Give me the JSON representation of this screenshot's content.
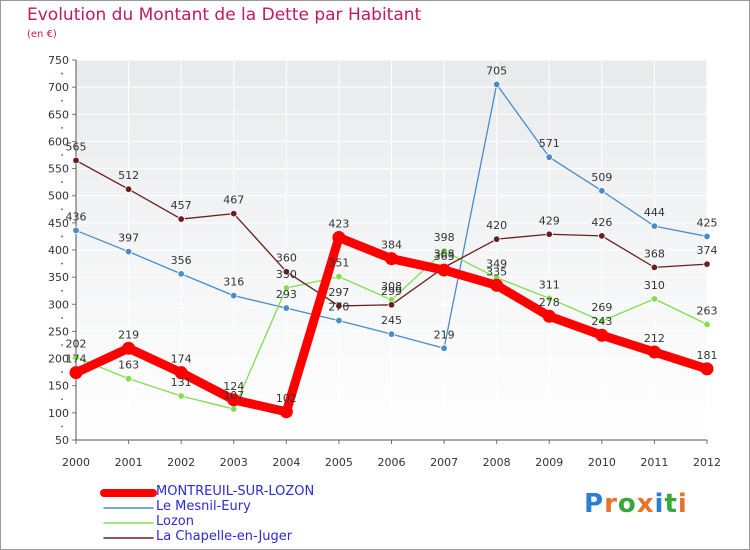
{
  "header": {
    "title": "Evolution du Montant de la Dette par Habitant",
    "subtitle": "(en €)"
  },
  "brand": {
    "logo_text": "Proxiti"
  },
  "chart_data": {
    "type": "line",
    "x": [
      "2000",
      "2001",
      "2002",
      "2003",
      "2004",
      "2005",
      "2006",
      "2007",
      "2008",
      "2009",
      "2010",
      "2011",
      "2012"
    ],
    "ylim": [
      50,
      750
    ],
    "yticks": [
      50,
      100,
      150,
      200,
      250,
      300,
      350,
      400,
      450,
      500,
      550,
      600,
      650,
      700,
      750
    ],
    "grid": true,
    "legend_position": "bottom-left",
    "series": [
      {
        "name": "MONTREUIL-SUR-LOZON",
        "color": "#ff0000",
        "values": [
          174,
          219,
          174,
          124,
          102,
          423,
          384,
          363,
          335,
          278,
          243,
          212,
          181
        ]
      },
      {
        "name": "Le Mesnil-Eury",
        "color": "#4a8cc9",
        "values": [
          436,
          397,
          356,
          316,
          293,
          270,
          245,
          219,
          705,
          571,
          509,
          444,
          425
        ]
      },
      {
        "name": "Lozon",
        "color": "#80df4e",
        "values": [
          202,
          163,
          131,
          107,
          330,
          351,
          308,
          398,
          349,
          311,
          269,
          310,
          263
        ]
      },
      {
        "name": "La Chapelle-en-Juger",
        "color": "#6b1e1e",
        "values": [
          565,
          512,
          457,
          467,
          360,
          297,
          299,
          368,
          420,
          429,
          426,
          368,
          374
        ]
      }
    ]
  }
}
